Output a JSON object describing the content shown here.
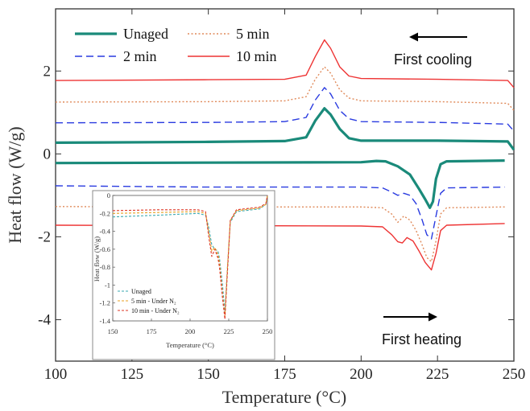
{
  "chart_data": [
    {
      "type": "line",
      "xlabel": "Temperature (°C)",
      "ylabel": "Heat flow (W/g)",
      "xlim": [
        100,
        250
      ],
      "ylim": [
        -5,
        3.5
      ],
      "x_ticks": [
        "100",
        "125",
        "150",
        "175",
        "200",
        "225",
        "250"
      ],
      "y_ticks": [
        "-4",
        "-2",
        "0",
        "2"
      ],
      "annotations": [
        "First cooling",
        "First heating"
      ],
      "legend_position": "top-left",
      "series": [
        {
          "name": "Unaged",
          "segment": "cooling",
          "color": "#1a8a7a",
          "style": "solid-thick",
          "x": [
            100,
            150,
            175,
            182,
            185,
            188,
            190,
            193,
            196,
            200,
            225,
            248,
            250
          ],
          "y": [
            0.27,
            0.29,
            0.31,
            0.4,
            0.8,
            1.1,
            0.95,
            0.6,
            0.38,
            0.32,
            0.32,
            0.3,
            0.1
          ]
        },
        {
          "name": "2 min",
          "segment": "cooling",
          "color": "#2a3be0",
          "style": "dashed",
          "x": [
            100,
            150,
            175,
            182,
            185,
            188,
            190,
            193,
            196,
            200,
            225,
            248,
            250
          ],
          "y": [
            0.75,
            0.76,
            0.78,
            0.88,
            1.3,
            1.6,
            1.45,
            1.05,
            0.85,
            0.78,
            0.76,
            0.72,
            0.55
          ]
        },
        {
          "name": "5 min",
          "segment": "cooling",
          "color": "#e08a5a",
          "style": "dotted",
          "x": [
            100,
            150,
            175,
            182,
            185,
            188,
            190,
            193,
            196,
            200,
            225,
            248,
            250
          ],
          "y": [
            1.25,
            1.26,
            1.28,
            1.38,
            1.8,
            2.1,
            1.95,
            1.55,
            1.35,
            1.28,
            1.26,
            1.22,
            1.05
          ]
        },
        {
          "name": "10 min",
          "segment": "cooling",
          "color": "#ee3333",
          "style": "solid",
          "x": [
            100,
            150,
            175,
            182,
            185,
            188,
            190,
            193,
            196,
            200,
            225,
            248,
            250
          ],
          "y": [
            1.77,
            1.79,
            1.8,
            1.9,
            2.35,
            2.75,
            2.55,
            2.1,
            1.88,
            1.82,
            1.8,
            1.77,
            1.6
          ]
        },
        {
          "name": "Unaged",
          "segment": "heating",
          "color": "#1a8a7a",
          "style": "solid-thick",
          "x": [
            100,
            150,
            200,
            205,
            208,
            212,
            216,
            219,
            221,
            222.5,
            223.5,
            224.5,
            226,
            228,
            247
          ],
          "y": [
            -0.22,
            -0.21,
            -0.2,
            -0.17,
            -0.18,
            -0.3,
            -0.5,
            -0.85,
            -1.1,
            -1.3,
            -1.15,
            -0.6,
            -0.25,
            -0.18,
            -0.16
          ]
        },
        {
          "name": "2 min",
          "segment": "heating",
          "color": "#2a3be0",
          "style": "dashed",
          "x": [
            100,
            150,
            200,
            207,
            210,
            212,
            214,
            216,
            218,
            220,
            221.5,
            223,
            224.5,
            226,
            228,
            247
          ],
          "y": [
            -0.77,
            -0.8,
            -0.8,
            -0.82,
            -0.92,
            -1.0,
            -0.95,
            -1.0,
            -1.2,
            -1.6,
            -1.95,
            -2.05,
            -1.5,
            -0.95,
            -0.82,
            -0.8
          ]
        },
        {
          "name": "5 min",
          "segment": "heating",
          "color": "#e08a5a",
          "style": "dotted",
          "x": [
            100,
            150,
            200,
            207,
            210,
            212,
            214,
            216,
            218,
            220,
            221.5,
            223,
            224.5,
            226,
            228,
            247
          ],
          "y": [
            -1.27,
            -1.28,
            -1.28,
            -1.3,
            -1.45,
            -1.65,
            -1.5,
            -1.6,
            -1.85,
            -2.2,
            -2.5,
            -2.6,
            -2.1,
            -1.45,
            -1.3,
            -1.28
          ]
        },
        {
          "name": "10 min",
          "segment": "heating",
          "color": "#ee3333",
          "style": "solid",
          "x": [
            100,
            150,
            200,
            207,
            210,
            212,
            213.5,
            215,
            217,
            219,
            221,
            223,
            224.5,
            226,
            228,
            247
          ],
          "y": [
            -1.72,
            -1.73,
            -1.74,
            -1.76,
            -1.95,
            -2.12,
            -2.15,
            -2.02,
            -2.1,
            -2.35,
            -2.62,
            -2.8,
            -2.4,
            -1.85,
            -1.72,
            -1.68
          ]
        }
      ]
    },
    {
      "type": "line",
      "inset": true,
      "xlabel": "Temperature (°C)",
      "ylabel": "Heat flow (W/g)",
      "xlim": [
        150,
        250
      ],
      "ylim": [
        -1.4,
        0
      ],
      "x_ticks": [
        "150",
        "175",
        "200",
        "225",
        "250"
      ],
      "y_ticks": [
        "0",
        "-0.2",
        "-0.4",
        "-0.6",
        "-0.8",
        "-1",
        "-1.2",
        "-1.4"
      ],
      "legend_position": "bottom-left",
      "legend": [
        "Unaged",
        "5 min - Under N₂",
        "10 min - Under N₂"
      ],
      "series": [
        {
          "name": "Unaged",
          "color": "#3aa8b0",
          "style": "dashed",
          "x": [
            150,
            180,
            205,
            210,
            212,
            214,
            216,
            218,
            219,
            221,
            222.5,
            224,
            226,
            230,
            245,
            249,
            250
          ],
          "y": [
            -0.24,
            -0.22,
            -0.2,
            -0.22,
            -0.35,
            -0.55,
            -0.6,
            -0.62,
            -0.7,
            -1.0,
            -1.3,
            -0.85,
            -0.3,
            -0.18,
            -0.15,
            -0.1,
            0.0
          ]
        },
        {
          "name": "5 min - Under N₂",
          "color": "#e8a020",
          "style": "dashed",
          "x": [
            150,
            180,
            205,
            210,
            212,
            214,
            216,
            218,
            219,
            221,
            222.5,
            224,
            226,
            230,
            245,
            249,
            250
          ],
          "y": [
            -0.2,
            -0.19,
            -0.18,
            -0.2,
            -0.4,
            -0.62,
            -0.58,
            -0.66,
            -0.75,
            -1.1,
            -1.35,
            -0.85,
            -0.28,
            -0.17,
            -0.14,
            -0.1,
            0.0
          ]
        },
        {
          "name": "10 min - Under N₂",
          "color": "#dd3322",
          "style": "dashed",
          "x": [
            150,
            180,
            205,
            210,
            212,
            214,
            216,
            218,
            219,
            221,
            222.5,
            224,
            226,
            230,
            245,
            249,
            250
          ],
          "y": [
            -0.17,
            -0.16,
            -0.16,
            -0.18,
            -0.45,
            -0.68,
            -0.6,
            -0.7,
            -0.8,
            -1.15,
            -1.38,
            -0.9,
            -0.28,
            -0.16,
            -0.13,
            -0.09,
            0.0
          ]
        }
      ]
    }
  ]
}
